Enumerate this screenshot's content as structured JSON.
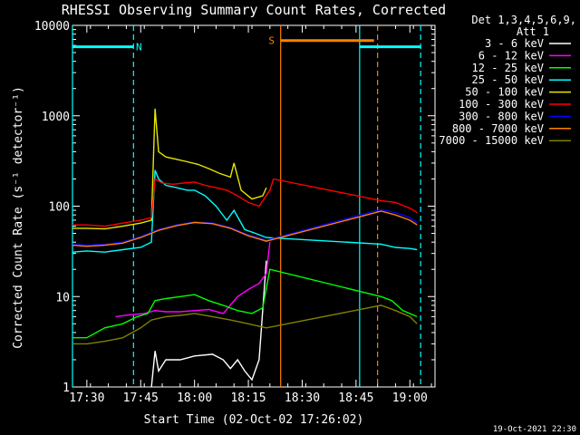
{
  "chart_data": {
    "type": "line",
    "title": "RHESSI Observing Summary Count Rates, Corrected",
    "xlabel": "Start Time (02-Oct-02 17:26:02)",
    "ylabel": "Corrected Count Rate (s⁻¹ detector⁻¹)",
    "y_scale": "log",
    "ylim": [
      1,
      10000
    ],
    "xlim": [
      "17:26",
      "19:07"
    ],
    "x_ticks": [
      "17:30",
      "17:45",
      "18:00",
      "18:15",
      "18:30",
      "18:45",
      "19:00"
    ],
    "y_ticks": [
      "1",
      "10",
      "100",
      "1000",
      "10000"
    ],
    "timestamp": "19-Oct-2021 22:30",
    "legend": {
      "header": [
        "Det 1,3,4,5,6,9,",
        "Att 1"
      ],
      "position": "right"
    },
    "markers": [
      {
        "label": "N",
        "color": "#00ffff",
        "value": 10000,
        "start": "17:26",
        "end": "17:43",
        "level": 5800
      },
      {
        "label": "S",
        "color": "#ff8000",
        "start": "18:24",
        "end": "18:50",
        "level": 6800
      },
      {
        "label": "",
        "color": "#00ffff",
        "start": "18:46",
        "end": "19:03",
        "level": 5800
      }
    ],
    "vlines": [
      {
        "t": "17:26",
        "color": "#00ffff",
        "style": "solid"
      },
      {
        "t": "17:43",
        "color": "#00ffff",
        "style": "dashed"
      },
      {
        "t": "18:24",
        "color": "#ff8000",
        "style": "solid"
      },
      {
        "t": "18:46",
        "color": "#00ffff",
        "style": "solid"
      },
      {
        "t": "18:51",
        "color": "#ff8000",
        "style": "dashed"
      },
      {
        "t": "19:03",
        "color": "#00ffff",
        "style": "dashed"
      }
    ],
    "series": [
      {
        "name": "3 - 6 keV",
        "color": "#ffffff",
        "points": [
          [
            "17:48",
            1
          ],
          [
            "17:49",
            2.5
          ],
          [
            "17:50",
            1.5
          ],
          [
            "17:52",
            2
          ],
          [
            "17:56",
            2
          ],
          [
            "18:00",
            2.2
          ],
          [
            "18:05",
            2.3
          ],
          [
            "18:08",
            2
          ],
          [
            "18:10",
            1.6
          ],
          [
            "18:12",
            2
          ],
          [
            "18:14",
            1.5
          ],
          [
            "18:16",
            1.2
          ],
          [
            "18:18",
            2
          ],
          [
            "18:20",
            25
          ]
        ]
      },
      {
        "name": "6 - 12 keV",
        "color": "#ff00ff",
        "points": [
          [
            "17:38",
            6
          ],
          [
            "17:42",
            6.3
          ],
          [
            "17:46",
            6.5
          ],
          [
            "17:49",
            7
          ],
          [
            "17:52",
            6.8
          ],
          [
            "17:56",
            6.8
          ],
          [
            "18:00",
            7
          ],
          [
            "18:04",
            7.2
          ],
          [
            "18:08",
            6.5
          ],
          [
            "18:12",
            10
          ],
          [
            "18:15",
            12
          ],
          [
            "18:18",
            14
          ],
          [
            "18:20",
            18
          ],
          [
            "18:21",
            40
          ]
        ]
      },
      {
        "name": "12 - 25 keV",
        "color": "#00ff00",
        "points": [
          [
            "17:26",
            3.5
          ],
          [
            "17:30",
            3.5
          ],
          [
            "17:35",
            4.5
          ],
          [
            "17:40",
            5
          ],
          [
            "17:44",
            6
          ],
          [
            "17:47",
            6.5
          ],
          [
            "17:49",
            9
          ],
          [
            "17:52",
            9.5
          ],
          [
            "17:56",
            10
          ],
          [
            "18:00",
            10.5
          ],
          [
            "18:04",
            9
          ],
          [
            "18:08",
            8
          ],
          [
            "18:12",
            7
          ],
          [
            "18:16",
            6.5
          ],
          [
            "18:19",
            7.5
          ],
          [
            "18:21",
            20
          ],
          [
            "18:52",
            10
          ],
          [
            "18:55",
            9
          ],
          [
            "18:58",
            7
          ],
          [
            "19:02",
            6
          ]
        ]
      },
      {
        "name": "25 - 50 keV",
        "color": "#00ffff",
        "points": [
          [
            "17:26",
            31
          ],
          [
            "17:30",
            32
          ],
          [
            "17:35",
            31
          ],
          [
            "17:40",
            33
          ],
          [
            "17:45",
            35
          ],
          [
            "17:48",
            40
          ],
          [
            "17:49",
            250
          ],
          [
            "17:50",
            200
          ],
          [
            "17:52",
            170
          ],
          [
            "17:55",
            160
          ],
          [
            "17:58",
            150
          ],
          [
            "18:00",
            150
          ],
          [
            "18:03",
            130
          ],
          [
            "18:06",
            100
          ],
          [
            "18:09",
            70
          ],
          [
            "18:11",
            90
          ],
          [
            "18:14",
            55
          ],
          [
            "18:17",
            50
          ],
          [
            "18:20",
            45
          ],
          [
            "18:52",
            38
          ],
          [
            "18:56",
            35
          ],
          [
            "19:00",
            34
          ],
          [
            "19:02",
            33
          ]
        ]
      },
      {
        "name": "50 - 100 keV",
        "color": "#e6e600",
        "points": [
          [
            "17:26",
            57
          ],
          [
            "17:30",
            57
          ],
          [
            "17:35",
            56
          ],
          [
            "17:40",
            60
          ],
          [
            "17:45",
            65
          ],
          [
            "17:48",
            70
          ],
          [
            "17:49",
            1200
          ],
          [
            "17:50",
            400
          ],
          [
            "17:52",
            350
          ],
          [
            "17:55",
            330
          ],
          [
            "17:58",
            310
          ],
          [
            "18:01",
            290
          ],
          [
            "18:04",
            260
          ],
          [
            "18:07",
            230
          ],
          [
            "18:10",
            210
          ],
          [
            "18:11",
            300
          ],
          [
            "18:13",
            150
          ],
          [
            "18:16",
            120
          ],
          [
            "18:19",
            130
          ],
          [
            "18:20",
            160
          ]
        ]
      },
      {
        "name": "100 - 300 keV",
        "color": "#ff0000",
        "points": [
          [
            "17:26",
            62
          ],
          [
            "17:30",
            62
          ],
          [
            "17:35",
            60
          ],
          [
            "17:40",
            65
          ],
          [
            "17:45",
            70
          ],
          [
            "17:48",
            75
          ],
          [
            "17:49",
            200
          ],
          [
            "17:51",
            180
          ],
          [
            "17:54",
            175
          ],
          [
            "17:57",
            180
          ],
          [
            "18:00",
            185
          ],
          [
            "18:03",
            170
          ],
          [
            "18:06",
            160
          ],
          [
            "18:09",
            150
          ],
          [
            "18:12",
            130
          ],
          [
            "18:15",
            110
          ],
          [
            "18:18",
            100
          ],
          [
            "18:21",
            150
          ],
          [
            "18:22",
            200
          ],
          [
            "18:52",
            115
          ],
          [
            "18:56",
            110
          ],
          [
            "19:00",
            95
          ],
          [
            "19:02",
            85
          ]
        ]
      },
      {
        "name": "300 - 800 keV",
        "color": "#0000ff",
        "points": [
          [
            "17:26",
            38
          ],
          [
            "17:30",
            37
          ],
          [
            "17:35",
            38
          ],
          [
            "17:40",
            40
          ],
          [
            "17:45",
            46
          ],
          [
            "17:50",
            55
          ],
          [
            "17:55",
            62
          ],
          [
            "18:00",
            67
          ],
          [
            "18:05",
            65
          ],
          [
            "18:10",
            58
          ],
          [
            "18:15",
            48
          ],
          [
            "18:20",
            42
          ],
          [
            "18:52",
            92
          ],
          [
            "18:56",
            85
          ],
          [
            "19:00",
            75
          ],
          [
            "19:02",
            65
          ]
        ]
      },
      {
        "name": "800 - 7000 keV",
        "color": "#ff8000",
        "points": [
          [
            "17:26",
            37
          ],
          [
            "17:30",
            36
          ],
          [
            "17:35",
            37
          ],
          [
            "17:40",
            39
          ],
          [
            "17:45",
            45
          ],
          [
            "17:50",
            54
          ],
          [
            "17:55",
            61
          ],
          [
            "18:00",
            66
          ],
          [
            "18:05",
            64
          ],
          [
            "18:10",
            57
          ],
          [
            "18:15",
            47
          ],
          [
            "18:20",
            41
          ],
          [
            "18:52",
            88
          ],
          [
            "18:56",
            80
          ],
          [
            "19:00",
            70
          ],
          [
            "19:02",
            62
          ]
        ]
      },
      {
        "name": "7000 - 15000 keV",
        "color": "#808000",
        "points": [
          [
            "17:26",
            3
          ],
          [
            "17:30",
            3
          ],
          [
            "17:35",
            3.2
          ],
          [
            "17:40",
            3.5
          ],
          [
            "17:45",
            4.5
          ],
          [
            "17:48",
            5.5
          ],
          [
            "17:52",
            6
          ],
          [
            "17:56",
            6.2
          ],
          [
            "18:00",
            6.5
          ],
          [
            "18:05",
            6
          ],
          [
            "18:10",
            5.5
          ],
          [
            "18:15",
            5
          ],
          [
            "18:20",
            4.5
          ],
          [
            "18:52",
            8
          ],
          [
            "18:56",
            7
          ],
          [
            "19:00",
            6
          ],
          [
            "19:02",
            5
          ]
        ]
      }
    ]
  }
}
